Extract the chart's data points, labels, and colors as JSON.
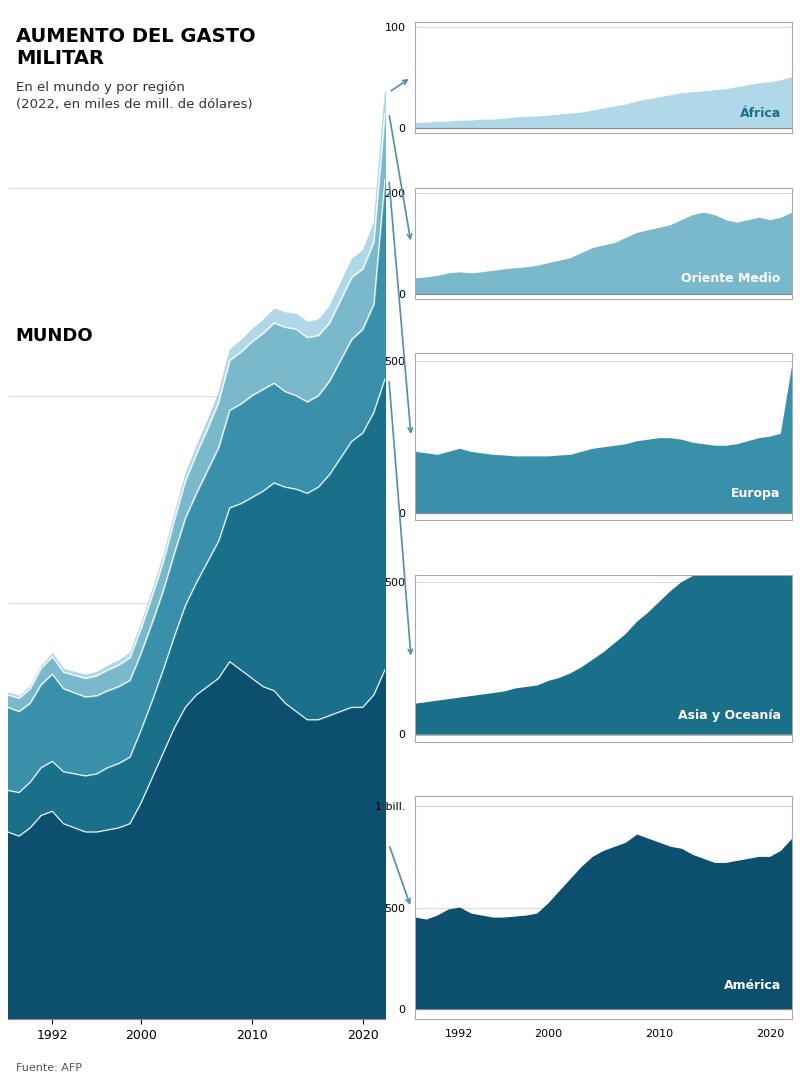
{
  "title_main": "AUMENTO DEL GASTO\nMILITAR",
  "subtitle": "En el mundo y por región\n(2022, en miles de mill. de dólares)",
  "source": "Fuente: AFP",
  "years": [
    1988,
    1989,
    1990,
    1991,
    1992,
    1993,
    1994,
    1995,
    1996,
    1997,
    1998,
    1999,
    2000,
    2001,
    2002,
    2003,
    2004,
    2005,
    2006,
    2007,
    2008,
    2009,
    2010,
    2011,
    2012,
    2013,
    2014,
    2015,
    2016,
    2017,
    2018,
    2019,
    2020,
    2021,
    2022
  ],
  "america": [
    450,
    440,
    460,
    490,
    500,
    470,
    460,
    450,
    450,
    455,
    460,
    470,
    520,
    580,
    640,
    700,
    750,
    780,
    800,
    820,
    860,
    840,
    820,
    800,
    790,
    760,
    740,
    720,
    720,
    730,
    740,
    750,
    750,
    780,
    840
  ],
  "asia": [
    100,
    105,
    110,
    115,
    120,
    125,
    130,
    135,
    140,
    150,
    155,
    160,
    175,
    185,
    200,
    220,
    245,
    270,
    300,
    330,
    370,
    400,
    435,
    470,
    500,
    520,
    535,
    545,
    560,
    580,
    610,
    640,
    660,
    680,
    700
  ],
  "europe": [
    200,
    195,
    190,
    200,
    210,
    200,
    195,
    190,
    188,
    185,
    185,
    185,
    185,
    188,
    190,
    200,
    210,
    215,
    220,
    225,
    235,
    240,
    245,
    245,
    240,
    230,
    225,
    220,
    220,
    225,
    235,
    245,
    250,
    260,
    480
  ],
  "mideast": [
    30,
    32,
    35,
    40,
    42,
    40,
    42,
    45,
    48,
    50,
    52,
    55,
    60,
    65,
    70,
    80,
    90,
    95,
    100,
    110,
    120,
    125,
    130,
    135,
    145,
    155,
    160,
    155,
    145,
    140,
    145,
    150,
    145,
    150,
    160
  ],
  "africa": [
    5,
    5,
    6,
    6,
    7,
    7,
    8,
    8,
    9,
    10,
    11,
    11,
    12,
    13,
    14,
    15,
    17,
    19,
    21,
    23,
    26,
    28,
    30,
    32,
    34,
    35,
    36,
    37,
    38,
    40,
    42,
    44,
    45,
    47,
    50
  ],
  "color_america": "#0d4f6e",
  "color_asia": "#1a6f8a",
  "color_europe": "#3a90aa",
  "color_mideast": "#7ab8cc",
  "color_africa": "#b0d8e8",
  "color_arrow": "#5090a8",
  "bg_color": "#ffffff",
  "subplot_border_color": "#333333"
}
